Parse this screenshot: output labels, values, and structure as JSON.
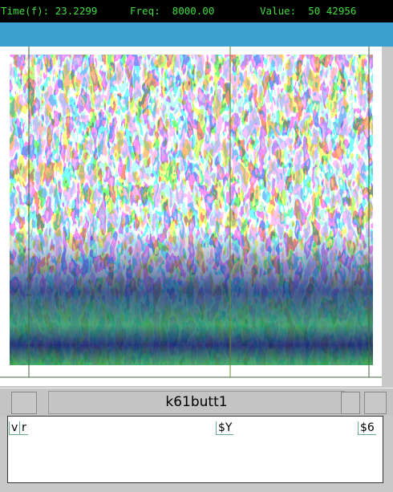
{
  "status": {
    "time": "Time(f): 23.2299",
    "freq": "Freq:  8000.00",
    "value": "Value:  50 42956"
  },
  "window": {
    "title": "k61butt1"
  },
  "labels": [
    "v",
    "r",
    "$Y",
    "$6"
  ]
}
